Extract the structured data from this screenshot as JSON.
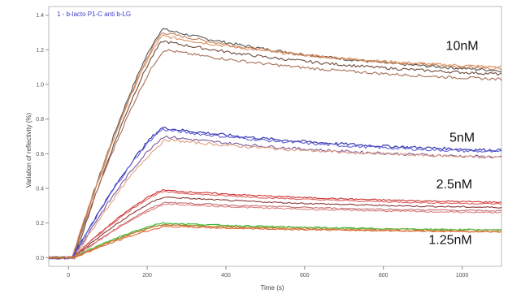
{
  "chart_data": {
    "type": "line",
    "legend_text": "1 - b-lacto P1-C anti b-LG",
    "legend_placement": "top-left",
    "xlabel": "Time (s)",
    "ylabel": "Variation of reflectivity (%)",
    "xlim": [
      -50,
      1100
    ],
    "ylim": [
      -0.05,
      1.45
    ],
    "x_ticks": [
      0,
      200,
      400,
      600,
      800,
      1000
    ],
    "y_ticks": [
      0.0,
      0.2,
      0.4,
      0.6,
      0.8,
      1.0,
      1.2,
      1.4
    ],
    "y_tick_labels": [
      "0.0",
      "0.2",
      "0.4",
      "0.6",
      "0.8",
      "1.0",
      "1.2",
      "1.4"
    ],
    "grid": false,
    "groups": [
      {
        "label": "10nM",
        "label_at": {
          "x": 1000,
          "y": 1.2
        },
        "curves": [
          {
            "color": "#555555",
            "baseline_x": 10,
            "peak_x": 240,
            "peak_y": 1.32,
            "end_y": 1.08
          },
          {
            "color": "#c0825a",
            "baseline_x": 12,
            "peak_x": 240,
            "peak_y": 1.3,
            "end_y": 1.09
          },
          {
            "color": "#e09060",
            "baseline_x": 8,
            "peak_x": 240,
            "peak_y": 1.28,
            "end_y": 1.1
          },
          {
            "color": "#6b4a3a",
            "baseline_x": 15,
            "peak_x": 240,
            "peak_y": 1.25,
            "end_y": 1.06
          },
          {
            "color": "#a87058",
            "baseline_x": 10,
            "peak_x": 245,
            "peak_y": 1.2,
            "end_y": 1.03
          }
        ]
      },
      {
        "label": "5nM",
        "label_at": {
          "x": 1000,
          "y": 0.67
        },
        "curves": [
          {
            "color": "#2a2aaa",
            "baseline_x": 10,
            "peak_x": 240,
            "peak_y": 0.75,
            "end_y": 0.62
          },
          {
            "color": "#6060d8",
            "baseline_x": 10,
            "peak_x": 240,
            "peak_y": 0.74,
            "end_y": 0.61
          },
          {
            "color": "#7a5a9a",
            "baseline_x": 12,
            "peak_x": 245,
            "peak_y": 0.7,
            "end_y": 0.58
          },
          {
            "color": "#e0a080",
            "baseline_x": 15,
            "peak_x": 250,
            "peak_y": 0.68,
            "end_y": 0.58
          }
        ]
      },
      {
        "label": "2.5nM",
        "label_at": {
          "x": 980,
          "y": 0.4
        },
        "curves": [
          {
            "color": "#cc3333",
            "baseline_x": 10,
            "peak_x": 240,
            "peak_y": 0.39,
            "end_y": 0.32
          },
          {
            "color": "#e06060",
            "baseline_x": 10,
            "peak_x": 240,
            "peak_y": 0.38,
            "end_y": 0.31
          },
          {
            "color": "#8a3a3a",
            "baseline_x": 12,
            "peak_x": 245,
            "peak_y": 0.35,
            "end_y": 0.29
          },
          {
            "color": "#c07070",
            "baseline_x": 15,
            "peak_x": 250,
            "peak_y": 0.32,
            "end_y": 0.27
          },
          {
            "color": "#e08080",
            "baseline_x": 15,
            "peak_x": 250,
            "peak_y": 0.31,
            "end_y": 0.26
          }
        ]
      },
      {
        "label": "1.25nM",
        "label_at": {
          "x": 970,
          "y": 0.08
        },
        "curves": [
          {
            "color": "#33bb33",
            "baseline_x": 10,
            "peak_x": 240,
            "peak_y": 0.2,
            "end_y": 0.16
          },
          {
            "color": "#88aa44",
            "baseline_x": 10,
            "peak_x": 240,
            "peak_y": 0.19,
            "end_y": 0.16
          },
          {
            "color": "#cc7733",
            "baseline_x": 12,
            "peak_x": 245,
            "peak_y": 0.19,
            "end_y": 0.15
          },
          {
            "color": "#e06a3a",
            "baseline_x": 15,
            "peak_x": 250,
            "peak_y": 0.18,
            "end_y": 0.15
          }
        ]
      }
    ]
  }
}
